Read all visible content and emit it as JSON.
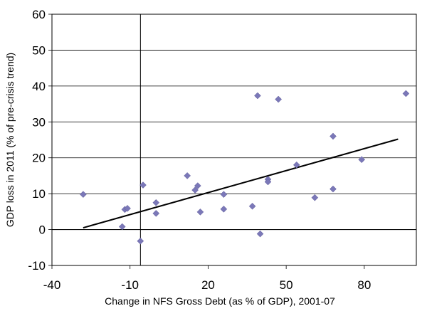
{
  "chart_data": {
    "type": "scatter",
    "title": "",
    "xlabel": "Change in NFS Gross Debt (as % of GDP), 2001-07",
    "ylabel": "GDP loss in 2011 (% of pre-crisis trend)",
    "xlim": [
      -40,
      100
    ],
    "ylim": [
      -10,
      60
    ],
    "x_ticks": [
      -40,
      -10,
      20,
      50,
      80
    ],
    "y_ticks": [
      -10,
      0,
      10,
      20,
      30,
      40,
      50,
      60
    ],
    "grid": true,
    "legend": "none",
    "point_color": "#7b78b8",
    "points": [
      {
        "x": -28,
        "y": 9.8
      },
      {
        "x": -13,
        "y": 0.8
      },
      {
        "x": -12,
        "y": 5.6
      },
      {
        "x": -11,
        "y": 5.9
      },
      {
        "x": -6,
        "y": -3.2
      },
      {
        "x": -5,
        "y": 12.4
      },
      {
        "x": 0,
        "y": 7.5
      },
      {
        "x": 0,
        "y": 4.5
      },
      {
        "x": 12,
        "y": 15.0
      },
      {
        "x": 15,
        "y": 11.0
      },
      {
        "x": 16,
        "y": 12.2
      },
      {
        "x": 17,
        "y": 4.9
      },
      {
        "x": 26,
        "y": 9.8
      },
      {
        "x": 26,
        "y": 5.7
      },
      {
        "x": 37,
        "y": 6.5
      },
      {
        "x": 39,
        "y": 37.3
      },
      {
        "x": 40,
        "y": -1.2
      },
      {
        "x": 43,
        "y": 14.0
      },
      {
        "x": 43,
        "y": 13.3
      },
      {
        "x": 47,
        "y": 36.3
      },
      {
        "x": 54,
        "y": 18.0
      },
      {
        "x": 61,
        "y": 8.9
      },
      {
        "x": 68,
        "y": 26.0
      },
      {
        "x": 68,
        "y": 11.3
      },
      {
        "x": 79,
        "y": 19.5
      },
      {
        "x": 96,
        "y": 37.9
      }
    ],
    "trendline": [
      {
        "x": -28,
        "y": 0.5
      },
      {
        "x": 93,
        "y": 25.2
      }
    ]
  }
}
